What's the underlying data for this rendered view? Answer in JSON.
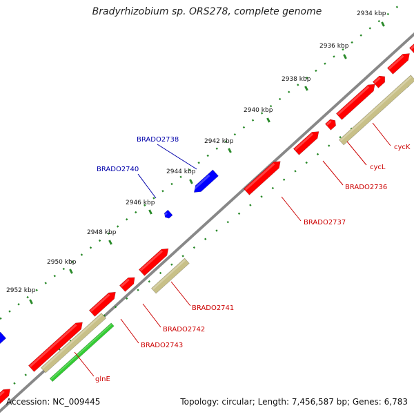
{
  "title": "Bradyrhizobium sp. ORS278, complete genome",
  "footer": {
    "accession": "Accession: NC_009445",
    "summary": "Topology: circular; Length: 7,456,587 bp; Genes: 6,783"
  },
  "colors": {
    "backbone": "#888888",
    "tick": "#2a8a2a",
    "gene_forward": "#ff0000",
    "gene_reverse": "#0000ff",
    "cds": "#c8c088",
    "rna": "#33cc33",
    "label_forward": "#cc0000",
    "label_reverse": "#0000aa"
  },
  "scale_labels": [
    {
      "kbp": 2934,
      "text": "2934 kbp"
    },
    {
      "kbp": 2936,
      "text": "2936 kbp"
    },
    {
      "kbp": 2938,
      "text": "2938 kbp"
    },
    {
      "kbp": 2940,
      "text": "2940 kbp"
    },
    {
      "kbp": 2942,
      "text": "2942 kbp"
    },
    {
      "kbp": 2944,
      "text": "2944 kbp"
    },
    {
      "kbp": 2946,
      "text": "2946 kbp"
    },
    {
      "kbp": 2948,
      "text": "2948 kbp"
    },
    {
      "kbp": 2950,
      "text": "2950 kbp"
    },
    {
      "kbp": 2952,
      "text": "2952 kbp"
    }
  ],
  "gene_labels": [
    {
      "text": "BRADO2738",
      "strand": "reverse"
    },
    {
      "text": "BRADO2740",
      "strand": "reverse"
    },
    {
      "text": "cycK",
      "strand": "forward"
    },
    {
      "text": "cycL",
      "strand": "forward"
    },
    {
      "text": "BRADO2736",
      "strand": "forward"
    },
    {
      "text": "BRADO2737",
      "strand": "forward"
    },
    {
      "text": "BRADO2741",
      "strand": "forward"
    },
    {
      "text": "BRADO2742",
      "strand": "forward"
    },
    {
      "text": "BRADO2743",
      "strand": "forward"
    },
    {
      "text": "glnE",
      "strand": "forward"
    }
  ]
}
